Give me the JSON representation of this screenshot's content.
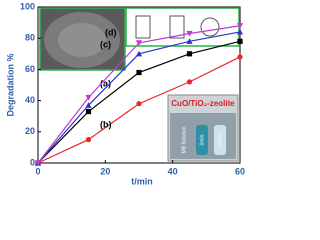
{
  "chart_data": {
    "type": "line",
    "x_label": "t/min",
    "y_label": "Degradation %",
    "x": [
      0,
      15,
      30,
      45,
      60
    ],
    "series": [
      {
        "name": "(a)",
        "color": "#000000",
        "marker": "square",
        "values": [
          0,
          33,
          58,
          70,
          78
        ]
      },
      {
        "name": "(b)",
        "color": "#e8262b",
        "marker": "circle",
        "values": [
          0,
          15,
          38,
          52,
          68
        ]
      },
      {
        "name": "(c)",
        "color": "#2a36c9",
        "marker": "triangle-up",
        "values": [
          0,
          37,
          70,
          78,
          84
        ]
      },
      {
        "name": "(d)",
        "color": "#c038d8",
        "marker": "triangle-down",
        "values": [
          0,
          42,
          77,
          83,
          88
        ]
      }
    ],
    "xlim": [
      0,
      60
    ],
    "xticks": [
      0,
      20,
      40,
      60
    ],
    "ylim": [
      0,
      100
    ],
    "yticks": [
      0,
      20,
      40,
      60,
      80,
      100
    ],
    "inset_title": "CuO/TiO₂-zeolite",
    "inset_labels": [
      "MB Solution",
      "0min",
      "60min"
    ]
  }
}
